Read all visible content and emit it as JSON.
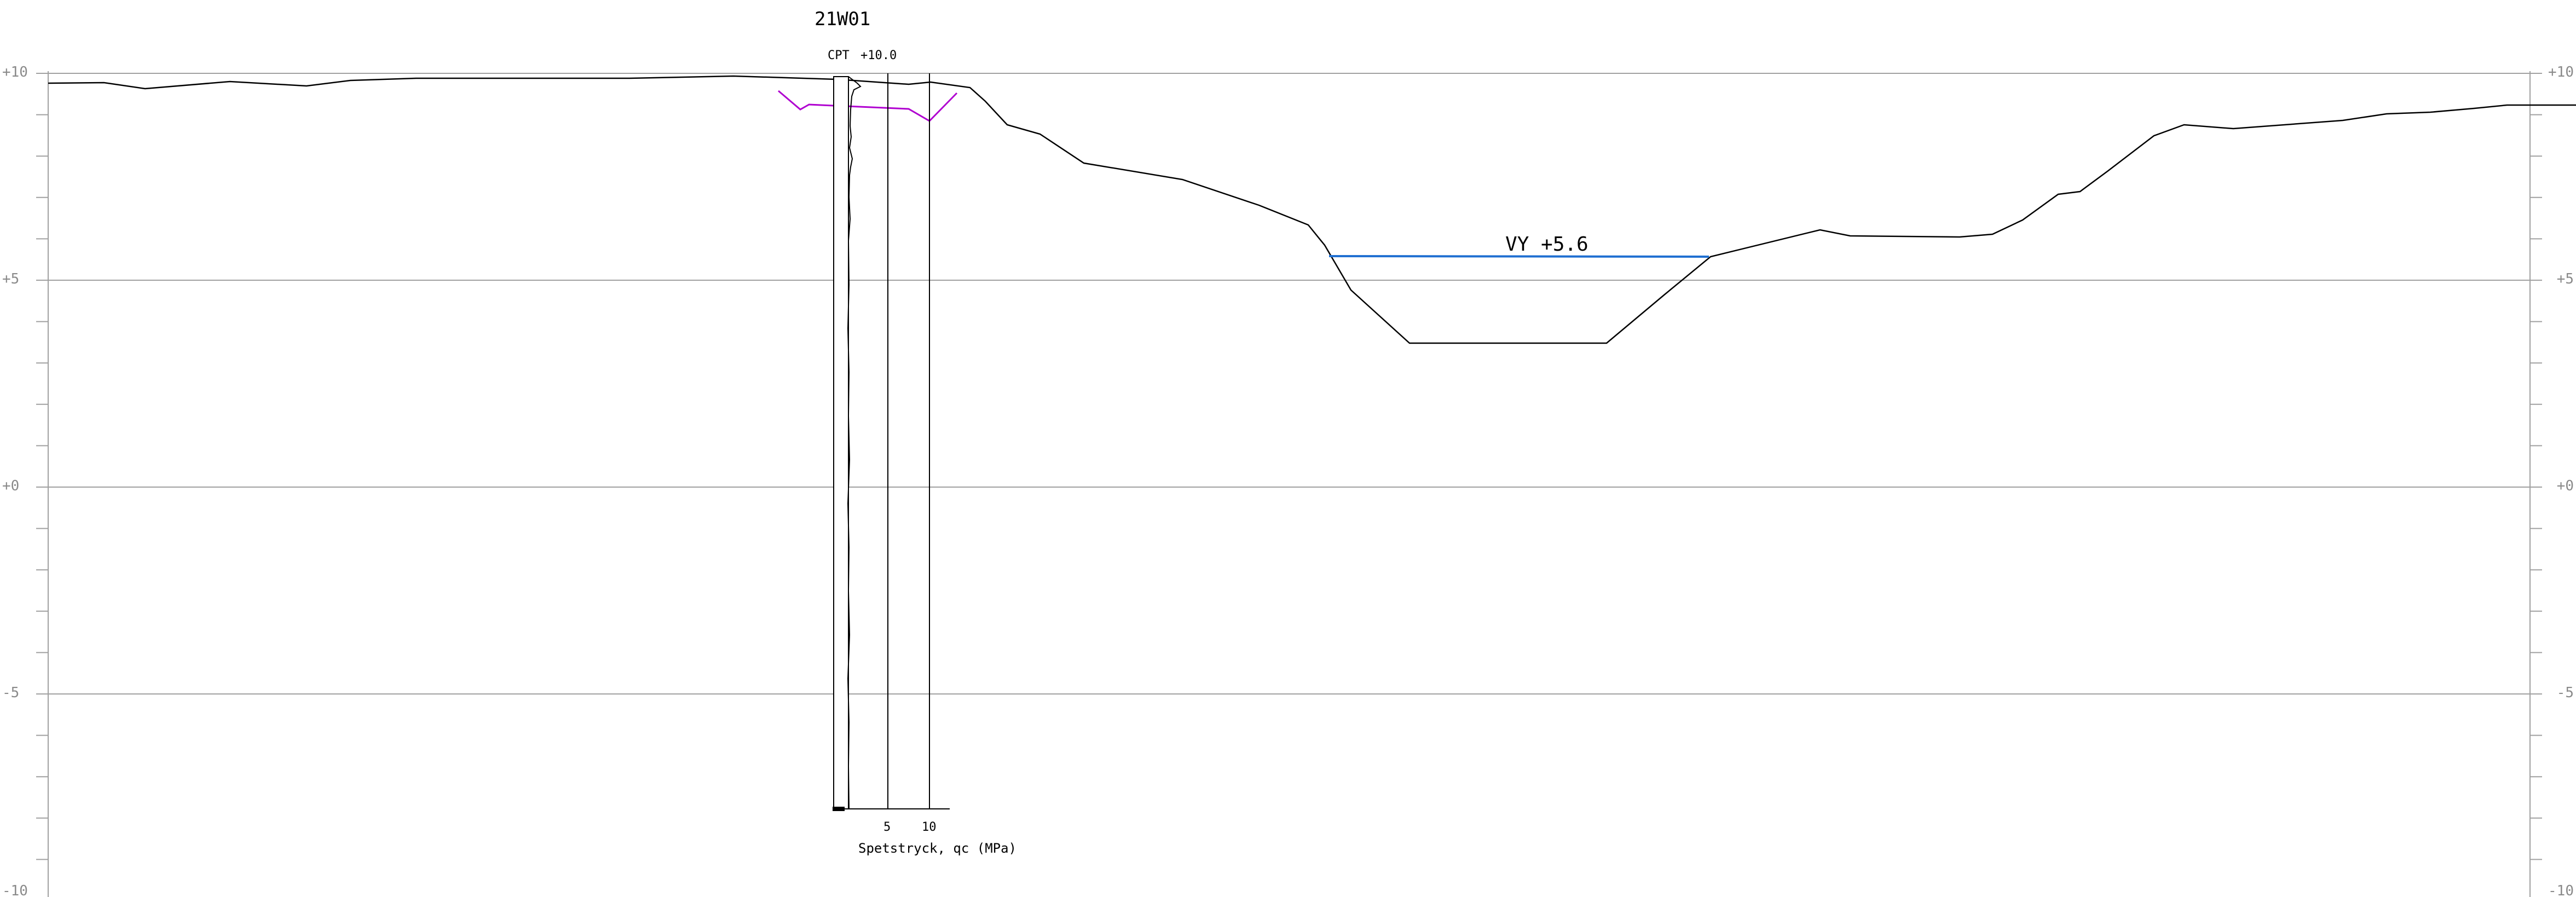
{
  "elevation_axis": {
    "labels": [
      {
        "value": 10,
        "text": "+10"
      },
      {
        "value": 5,
        "text": "+5"
      },
      {
        "value": 0,
        "text": "+0"
      },
      {
        "value": -5,
        "text": "-5"
      },
      {
        "value": -10,
        "text": "-10"
      }
    ],
    "minor_step": 1
  },
  "borehole": {
    "id": "21W01",
    "cpt_label": "CPT",
    "cpt_level": "+10.0",
    "ticks": [
      "5",
      "10"
    ],
    "axis_title": "Spetstryck, qc (MPa)",
    "bottom_elevation": -7.8
  },
  "water": {
    "label": "VY +5.6",
    "elevation": 5.6,
    "color": "#1f6fd1"
  },
  "colors": {
    "ground": "#000000",
    "grid": "#a0a0a0",
    "axis_text": "#8a8a8a",
    "boundary_line": "#b000d0",
    "water": "#1f6fd1"
  }
}
